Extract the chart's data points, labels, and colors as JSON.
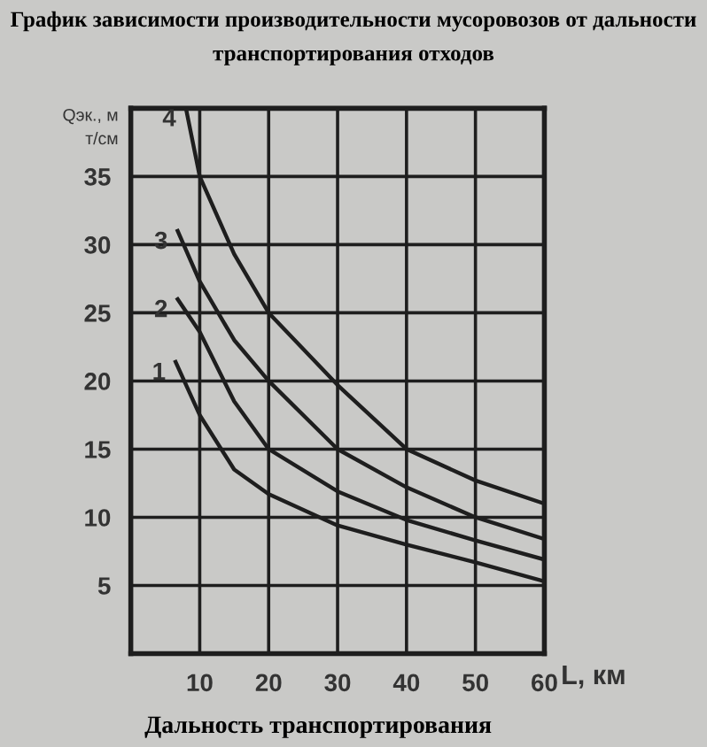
{
  "chart_data": {
    "type": "line",
    "title": "График зависимости производительности мусоровозов от дальности транспортирования отходов",
    "xlabel": "L, км",
    "ylabel": "Qэк., м\nт/см",
    "annotations": [
      "Дальность транспортирования"
    ],
    "xlim": [
      0,
      60
    ],
    "ylim": [
      0,
      40
    ],
    "xticks": [
      10,
      20,
      30,
      40,
      50,
      60
    ],
    "yticks": [
      5,
      10,
      15,
      20,
      25,
      30,
      35
    ],
    "grid": true,
    "marker": "none",
    "line_style": "solid",
    "series": [
      {
        "name": "1",
        "color": "#1e1e1e",
        "x": [
          6.5,
          10,
          15,
          20,
          30,
          40,
          50,
          60
        ],
        "values": [
          21.4,
          17.5,
          13.5,
          11.7,
          9.4,
          8.0,
          6.7,
          5.3
        ]
      },
      {
        "name": "2",
        "color": "#1e1e1e",
        "x": [
          6.8,
          10,
          15,
          20,
          30,
          40,
          50,
          60
        ],
        "values": [
          26,
          23.6,
          18.5,
          15,
          11.9,
          9.8,
          8.3,
          6.9
        ]
      },
      {
        "name": "3",
        "color": "#1e1e1e",
        "x": [
          6.8,
          10,
          15,
          20,
          30,
          40,
          50,
          60
        ],
        "values": [
          31,
          27.3,
          23,
          20,
          15,
          12.2,
          10,
          8.4
        ]
      },
      {
        "name": "4",
        "color": "#1e1e1e",
        "x": [
          8,
          10,
          15,
          20,
          30,
          40,
          50,
          60
        ],
        "values": [
          40,
          35,
          29.3,
          25,
          19.7,
          15,
          12.7,
          11
        ]
      }
    ]
  }
}
